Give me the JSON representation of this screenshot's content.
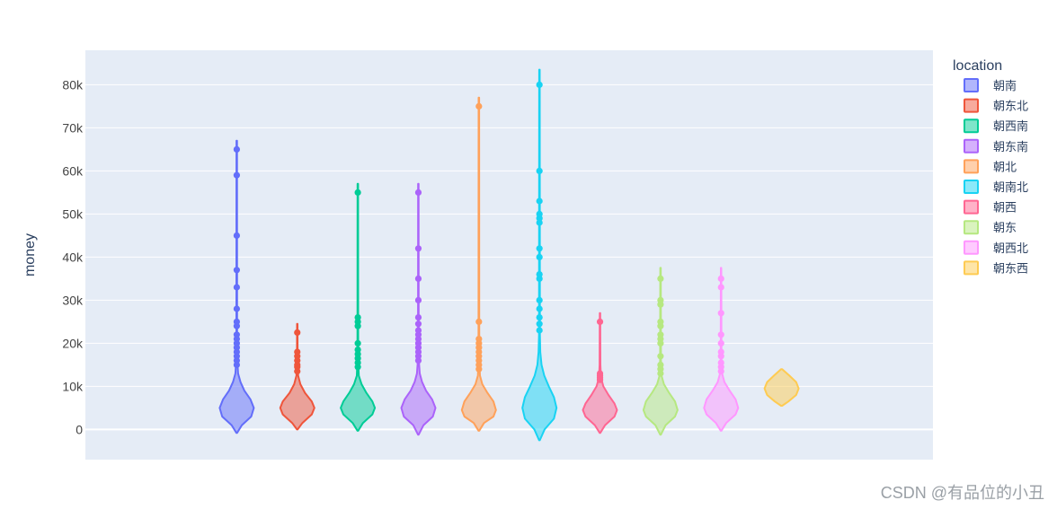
{
  "chart_data": {
    "type": "violin",
    "ylabel": "money",
    "ylim": [
      -7000,
      88000
    ],
    "yticks": [
      0,
      10000,
      20000,
      30000,
      40000,
      50000,
      60000,
      70000,
      80000
    ],
    "ytick_labels": [
      "0",
      "10k",
      "20k",
      "30k",
      "40k",
      "50k",
      "60k",
      "70k",
      "80k"
    ],
    "legend_title": "location",
    "grid": true,
    "legend_position": "right",
    "series": [
      {
        "name": "朝南",
        "color": "#636efa",
        "kde_min": -800,
        "kde_max": 67000,
        "width": 1.0,
        "outliers": [
          15000,
          16000,
          17000,
          18000,
          19000,
          20000,
          21000,
          22000,
          24000,
          25000,
          28000,
          33000,
          37000,
          45000,
          59000,
          65000
        ],
        "profile": [
          [
            -800,
            0.02
          ],
          [
            1000,
            0.3
          ],
          [
            3000,
            0.85
          ],
          [
            5000,
            1.0
          ],
          [
            7000,
            0.8
          ],
          [
            9000,
            0.45
          ],
          [
            11000,
            0.22
          ],
          [
            13000,
            0.08
          ],
          [
            16000,
            0.03
          ],
          [
            22000,
            0.02
          ],
          [
            67000,
            0.015
          ]
        ]
      },
      {
        "name": "朝东北",
        "color": "#EF553B",
        "kde_min": 0,
        "kde_max": 24500,
        "width": 1.0,
        "outliers": [
          13500,
          14500,
          15000,
          16000,
          17000,
          18000,
          22500
        ],
        "profile": [
          [
            0,
            0.02
          ],
          [
            1500,
            0.3
          ],
          [
            3500,
            0.85
          ],
          [
            5000,
            1.0
          ],
          [
            6500,
            0.85
          ],
          [
            8500,
            0.45
          ],
          [
            10500,
            0.18
          ],
          [
            12500,
            0.05
          ],
          [
            17000,
            0.02
          ],
          [
            24500,
            0.015
          ]
        ]
      },
      {
        "name": "朝西南",
        "color": "#00cc96",
        "kde_min": -300,
        "kde_max": 57000,
        "width": 1.0,
        "outliers": [
          14500,
          15500,
          16500,
          17500,
          18500,
          20000,
          24000,
          25000,
          26000,
          55000
        ],
        "profile": [
          [
            -300,
            0.02
          ],
          [
            1500,
            0.3
          ],
          [
            3500,
            0.85
          ],
          [
            5000,
            1.0
          ],
          [
            6500,
            0.85
          ],
          [
            8500,
            0.5
          ],
          [
            10500,
            0.22
          ],
          [
            12500,
            0.06
          ],
          [
            16000,
            0.025
          ],
          [
            22000,
            0.02
          ],
          [
            57000,
            0.015
          ]
        ]
      },
      {
        "name": "朝东南",
        "color": "#ab63fa",
        "kde_min": -1200,
        "kde_max": 57000,
        "width": 1.0,
        "outliers": [
          16000,
          17000,
          18000,
          19000,
          20000,
          21000,
          22000,
          23000,
          24500,
          26000,
          30000,
          35000,
          42000,
          55000
        ],
        "profile": [
          [
            -1200,
            0.02
          ],
          [
            1000,
            0.3
          ],
          [
            3000,
            0.85
          ],
          [
            5000,
            1.0
          ],
          [
            7000,
            0.8
          ],
          [
            9000,
            0.45
          ],
          [
            11000,
            0.22
          ],
          [
            13000,
            0.08
          ],
          [
            16000,
            0.03
          ],
          [
            23000,
            0.02
          ],
          [
            57000,
            0.015
          ]
        ]
      },
      {
        "name": "朝北",
        "color": "#FFA15A",
        "kde_min": -300,
        "kde_max": 77000,
        "width": 1.0,
        "outliers": [
          14000,
          15000,
          16000,
          17000,
          18000,
          19000,
          20000,
          21000,
          25000,
          75000
        ],
        "profile": [
          [
            -300,
            0.02
          ],
          [
            1500,
            0.3
          ],
          [
            3000,
            0.85
          ],
          [
            4500,
            1.0
          ],
          [
            6500,
            0.85
          ],
          [
            8500,
            0.5
          ],
          [
            10500,
            0.2
          ],
          [
            12500,
            0.06
          ],
          [
            16000,
            0.025
          ],
          [
            25000,
            0.02
          ],
          [
            77000,
            0.015
          ]
        ]
      },
      {
        "name": "朝南北",
        "color": "#19d3f3",
        "kde_min": -2500,
        "kde_max": 83500,
        "width": 1.0,
        "outliers": [
          23000,
          24500,
          26000,
          28000,
          30000,
          35000,
          36000,
          40000,
          42000,
          48000,
          49000,
          50000,
          53000,
          60000,
          80000
        ],
        "profile": [
          [
            -2500,
            0.02
          ],
          [
            0,
            0.3
          ],
          [
            2500,
            0.85
          ],
          [
            5000,
            1.0
          ],
          [
            7500,
            0.85
          ],
          [
            10000,
            0.55
          ],
          [
            12500,
            0.28
          ],
          [
            15000,
            0.12
          ],
          [
            18000,
            0.05
          ],
          [
            22000,
            0.025
          ],
          [
            83500,
            0.015
          ]
        ]
      },
      {
        "name": "朝西",
        "color": "#FF6692",
        "kde_min": -800,
        "kde_max": 27000,
        "width": 1.0,
        "outliers": [
          11500,
          12000,
          12500,
          13000,
          25000
        ],
        "profile": [
          [
            -800,
            0.02
          ],
          [
            1000,
            0.3
          ],
          [
            3000,
            0.85
          ],
          [
            4500,
            1.0
          ],
          [
            6000,
            0.85
          ],
          [
            8000,
            0.5
          ],
          [
            10000,
            0.2
          ],
          [
            12000,
            0.06
          ],
          [
            15000,
            0.025
          ],
          [
            27000,
            0.015
          ]
        ]
      },
      {
        "name": "朝东",
        "color": "#B6E880",
        "kde_min": -1200,
        "kde_max": 37500,
        "width": 1.0,
        "outliers": [
          13000,
          14000,
          15000,
          17000,
          20000,
          21000,
          22000,
          24000,
          25000,
          29000,
          30000,
          35000
        ],
        "profile": [
          [
            -1200,
            0.02
          ],
          [
            1000,
            0.3
          ],
          [
            3000,
            0.85
          ],
          [
            4500,
            1.0
          ],
          [
            6500,
            0.85
          ],
          [
            8500,
            0.5
          ],
          [
            10500,
            0.2
          ],
          [
            12500,
            0.06
          ],
          [
            16000,
            0.025
          ],
          [
            37500,
            0.015
          ]
        ]
      },
      {
        "name": "朝西北",
        "color": "#FF97FF",
        "kde_min": -300,
        "kde_max": 37500,
        "width": 1.0,
        "outliers": [
          13500,
          14500,
          15500,
          17000,
          18000,
          20000,
          22000,
          27000,
          33000,
          35000
        ],
        "profile": [
          [
            -300,
            0.02
          ],
          [
            1500,
            0.3
          ],
          [
            3500,
            0.85
          ],
          [
            5000,
            1.0
          ],
          [
            7000,
            0.85
          ],
          [
            9000,
            0.5
          ],
          [
            11000,
            0.2
          ],
          [
            13000,
            0.06
          ],
          [
            16000,
            0.025
          ],
          [
            37500,
            0.015
          ]
        ]
      },
      {
        "name": "朝东西",
        "color": "#FECB52",
        "kde_min": 5500,
        "kde_max": 14000,
        "width": 1.0,
        "outliers": [],
        "profile": [
          [
            5500,
            0.03
          ],
          [
            6500,
            0.4
          ],
          [
            8000,
            0.85
          ],
          [
            9500,
            1.0
          ],
          [
            11000,
            0.85
          ],
          [
            12500,
            0.45
          ],
          [
            14000,
            0.03
          ]
        ]
      }
    ]
  },
  "watermark": "CSDN @有品位的小丑"
}
